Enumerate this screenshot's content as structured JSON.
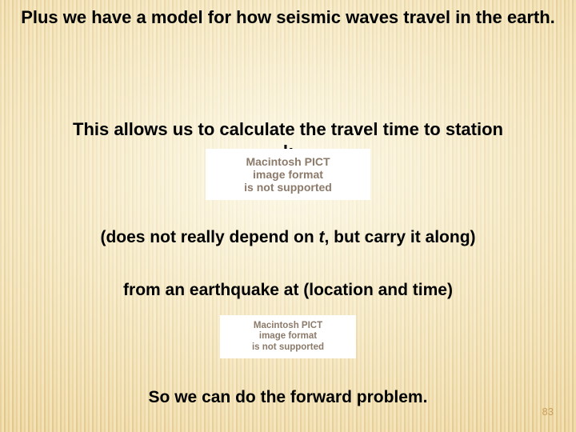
{
  "slide": {
    "line1": "Plus we have a model for how seismic waves travel in the earth.",
    "line2a": "This allows us to calculate the travel time to station",
    "line2b": "k",
    "line3_pre": "(does not really depend on ",
    "line3_ital": "t",
    "line3_post": ", but carry it along)",
    "line4": "from an earthquake at (location and time)",
    "line5": "So we can do the forward problem.",
    "page_number": "83"
  },
  "placeholder": {
    "l1": "Macintosh PICT",
    "l2": "image format",
    "l3": "is not supported"
  },
  "style": {
    "bg_stripe_dark": "#e3c788",
    "bg_stripe_light": "#f3e1b4",
    "glow_color": "#fffff2",
    "text_color": "#000000",
    "placeholder_bg": "#ffffff",
    "placeholder_text": "#8c7a6a",
    "page_num_color": "#caa05a",
    "heading_fontsize_pt": 17,
    "body_fontsize_pt": 16
  }
}
